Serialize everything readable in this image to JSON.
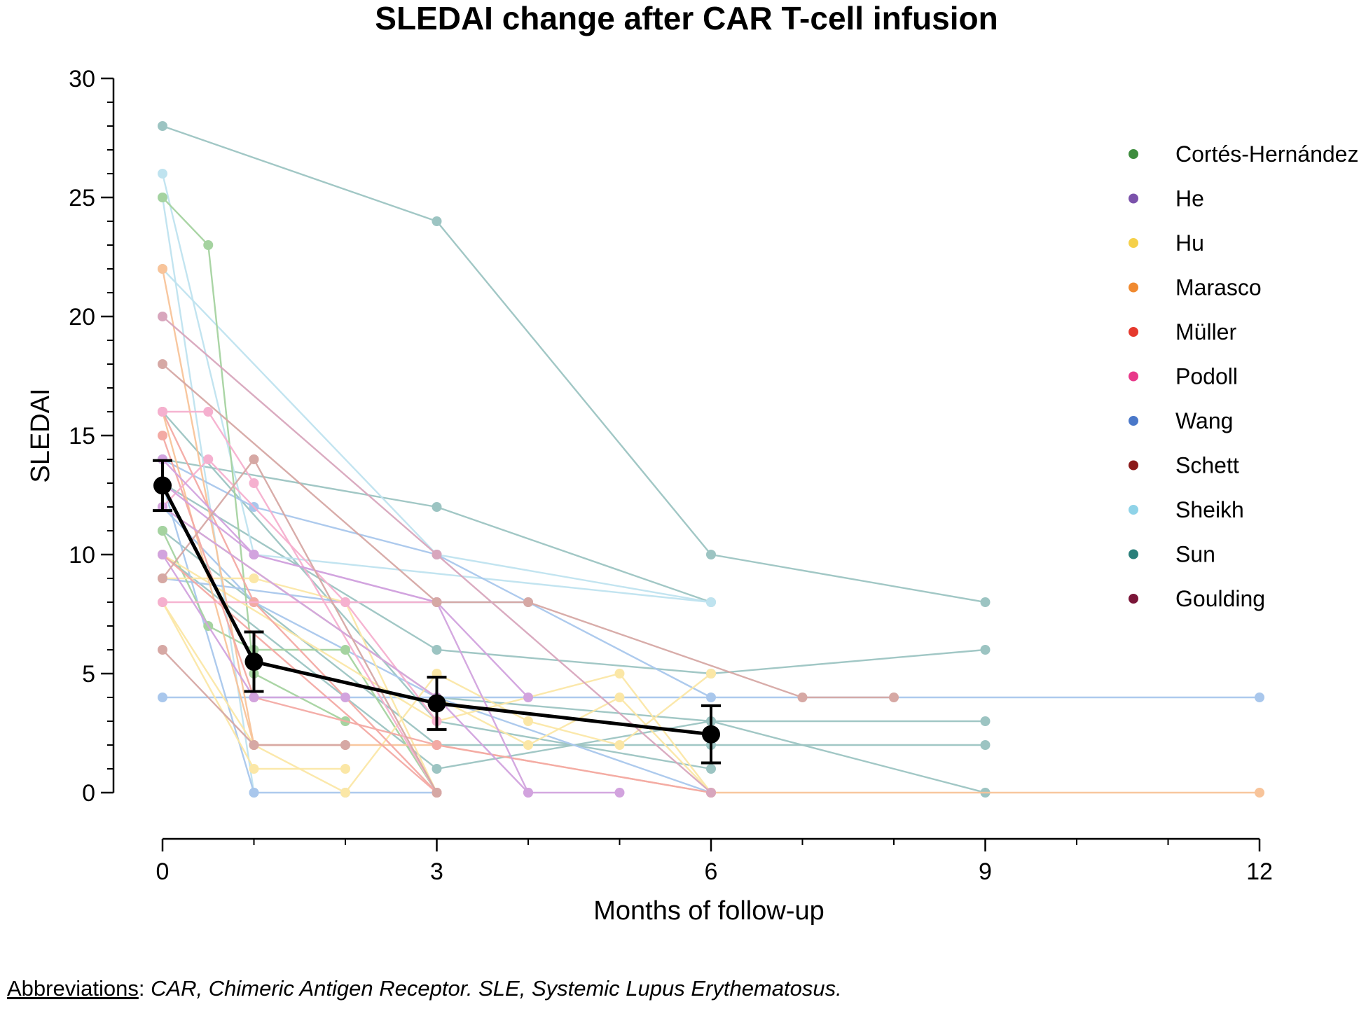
{
  "chart_data": {
    "type": "line",
    "title": "SLEDAI change after CAR T-cell infusion",
    "xlabel": "Months of follow-up",
    "ylabel": "SLEDAI",
    "xlim": [
      0,
      12
    ],
    "ylim": [
      0,
      30
    ],
    "x_ticks": [
      0,
      3,
      6,
      9,
      12
    ],
    "x_tick_labels": [
      "0",
      "3",
      "6",
      "9",
      "12"
    ],
    "y_ticks": [
      0,
      5,
      10,
      15,
      20,
      25,
      30
    ],
    "y_tick_labels": [
      "0",
      "5",
      "10",
      "15",
      "20",
      "25",
      "30"
    ],
    "legend_position": "right",
    "legend": [
      {
        "name": "Cortés-Hernández",
        "color": "#3d8c3d"
      },
      {
        "name": "He",
        "color": "#7b52ab"
      },
      {
        "name": "Hu",
        "color": "#f5d04a"
      },
      {
        "name": "Marasco",
        "color": "#f08a30"
      },
      {
        "name": "Müller",
        "color": "#e5392d"
      },
      {
        "name": "Podoll",
        "color": "#e8398a"
      },
      {
        "name": "Wang",
        "color": "#4a78c9"
      },
      {
        "name": "Schett",
        "color": "#8b1a1a"
      },
      {
        "name": "Sheikh",
        "color": "#8fd3e8"
      },
      {
        "name": "Sun",
        "color": "#2a7f7a"
      },
      {
        "name": "Goulding",
        "color": "#7a1538"
      }
    ],
    "mean_series": {
      "x": [
        0,
        1,
        3,
        6
      ],
      "y": [
        12.9,
        5.5,
        3.75,
        2.45
      ],
      "error": [
        1.05,
        1.25,
        1.1,
        1.2
      ],
      "color": "#000000"
    },
    "patient_series": [
      {
        "color": "#9cc4c2",
        "x": [
          0,
          3,
          6,
          9
        ],
        "y": [
          28,
          24,
          10,
          8
        ]
      },
      {
        "color": "#9cc4c2",
        "x": [
          0,
          3,
          6
        ],
        "y": [
          14,
          12,
          8
        ]
      },
      {
        "color": "#9cc4c2",
        "x": [
          0,
          3,
          6,
          9
        ],
        "y": [
          13,
          6,
          5,
          6
        ]
      },
      {
        "color": "#9cc4c2",
        "x": [
          0,
          3,
          6,
          9
        ],
        "y": [
          12,
          4,
          3,
          3
        ]
      },
      {
        "color": "#9cc4c2",
        "x": [
          0,
          3,
          6,
          9
        ],
        "y": [
          11,
          2,
          2,
          2
        ]
      },
      {
        "color": "#9cc4c2",
        "x": [
          0,
          3,
          6,
          9
        ],
        "y": [
          10,
          1,
          3,
          0
        ]
      },
      {
        "color": "#9cc4c2",
        "x": [
          0,
          3,
          6
        ],
        "y": [
          16,
          3,
          1
        ]
      },
      {
        "color": "#bfe3ef",
        "x": [
          0,
          1,
          6
        ],
        "y": [
          26,
          10,
          8
        ]
      },
      {
        "color": "#bfe3ef",
        "x": [
          0,
          3,
          6
        ],
        "y": [
          22,
          10,
          8
        ]
      },
      {
        "color": "#bfe3ef",
        "x": [
          0,
          1
        ],
        "y": [
          25,
          0
        ]
      },
      {
        "color": "#a9c7ec",
        "x": [
          0,
          1,
          3,
          6
        ],
        "y": [
          14,
          12,
          10,
          4
        ]
      },
      {
        "color": "#a9c7ec",
        "x": [
          0,
          12
        ],
        "y": [
          4,
          4
        ]
      },
      {
        "color": "#a9c7ec",
        "x": [
          0,
          1,
          2,
          3
        ],
        "y": [
          13,
          0,
          0,
          0
        ]
      },
      {
        "color": "#a9c7ec",
        "x": [
          0,
          1,
          3,
          6
        ],
        "y": [
          12,
          8,
          4,
          0
        ]
      },
      {
        "color": "#a9c7ec",
        "x": [
          0,
          2,
          4
        ],
        "y": [
          9,
          8,
          8
        ]
      },
      {
        "color": "#a5d3a0",
        "x": [
          0,
          0.5,
          1,
          2
        ],
        "y": [
          25,
          23,
          5,
          3
        ]
      },
      {
        "color": "#a5d3a0",
        "x": [
          0,
          0.5,
          1,
          2,
          3
        ],
        "y": [
          11,
          7,
          6,
          6,
          0
        ]
      },
      {
        "color": "#fbe7a6",
        "x": [
          0,
          1,
          2
        ],
        "y": [
          8,
          1,
          1
        ]
      },
      {
        "color": "#fbe7a6",
        "x": [
          0,
          1,
          2,
          3
        ],
        "y": [
          9,
          9,
          8,
          0
        ]
      },
      {
        "color": "#fbe7a6",
        "x": [
          0,
          1,
          2,
          3,
          4,
          5,
          6
        ],
        "y": [
          8,
          2,
          0,
          5,
          3,
          2,
          5
        ]
      },
      {
        "color": "#fbe7a6",
        "x": [
          0,
          3,
          5,
          6
        ],
        "y": [
          10,
          3,
          5,
          0
        ]
      },
      {
        "color": "#fbe7a6",
        "x": [
          0,
          3,
          4,
          5,
          6
        ],
        "y": [
          12,
          4,
          2,
          4,
          0
        ]
      },
      {
        "color": "#f8c49a",
        "x": [
          0,
          1,
          3,
          6,
          12
        ],
        "y": [
          22,
          2,
          2,
          0,
          0
        ]
      },
      {
        "color": "#f8c49a",
        "x": [
          0,
          1,
          2
        ],
        "y": [
          16,
          2,
          2
        ]
      },
      {
        "color": "#f3aaa4",
        "x": [
          0,
          1,
          3
        ],
        "y": [
          16,
          8,
          0
        ]
      },
      {
        "color": "#f3aaa4",
        "x": [
          0,
          1,
          3,
          6
        ],
        "y": [
          15,
          4,
          2,
          0
        ]
      },
      {
        "color": "#f3aaa4",
        "x": [
          0,
          3
        ],
        "y": [
          10,
          0
        ]
      },
      {
        "color": "#f5b0cf",
        "x": [
          0,
          0.5,
          1,
          3
        ],
        "y": [
          16,
          16,
          13,
          0
        ]
      },
      {
        "color": "#f5b0cf",
        "x": [
          0,
          0.5,
          2,
          3
        ],
        "y": [
          12,
          14,
          8,
          3
        ]
      },
      {
        "color": "#f5b0cf",
        "x": [
          0,
          3
        ],
        "y": [
          8,
          8
        ]
      },
      {
        "color": "#d2a3de",
        "x": [
          0,
          1,
          3,
          4
        ],
        "y": [
          14,
          10,
          8,
          0
        ]
      },
      {
        "color": "#d2a3de",
        "x": [
          0,
          1,
          2
        ],
        "y": [
          10,
          4,
          4
        ]
      },
      {
        "color": "#d2a3de",
        "x": [
          0,
          3,
          4,
          5
        ],
        "y": [
          12,
          4,
          0,
          0
        ]
      },
      {
        "color": "#d2a3de",
        "x": [
          0,
          1,
          3,
          4
        ],
        "y": [
          13,
          10,
          8,
          4
        ]
      },
      {
        "color": "#d6a8a4",
        "x": [
          0,
          3,
          4,
          7,
          8
        ],
        "y": [
          18,
          8,
          8,
          4,
          4
        ]
      },
      {
        "color": "#d6a8a4",
        "x": [
          0,
          1,
          2
        ],
        "y": [
          6,
          2,
          2
        ]
      },
      {
        "color": "#d6a8a4",
        "x": [
          0,
          1,
          3
        ],
        "y": [
          9,
          14,
          0
        ]
      },
      {
        "color": "#d8a6bd",
        "x": [
          0,
          3,
          6
        ],
        "y": [
          20,
          10,
          0
        ]
      }
    ]
  },
  "footnote": {
    "label": "Abbreviations",
    "separator": ": ",
    "text": "CAR, Chimeric Antigen Receptor. SLE, Systemic Lupus Erythematosus."
  }
}
